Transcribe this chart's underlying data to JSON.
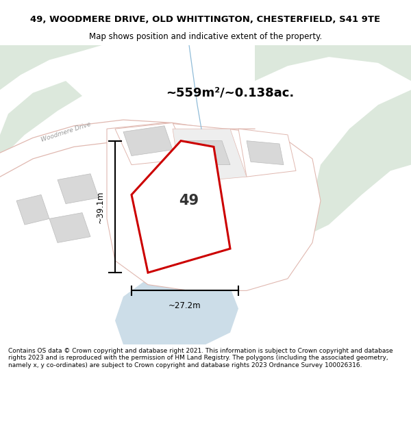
{
  "title": "49, WOODMERE DRIVE, OLD WHITTINGTON, CHESTERFIELD, S41 9TE",
  "subtitle": "Map shows position and indicative extent of the property.",
  "footer": "Contains OS data © Crown copyright and database right 2021. This information is subject to Crown copyright and database rights 2023 and is reproduced with the permission of HM Land Registry. The polygons (including the associated geometry, namely x, y co-ordinates) are subject to Crown copyright and database rights 2023 Ordnance Survey 100026316.",
  "area_text": "~559m²/~0.138ac.",
  "width_label": "~27.2m",
  "height_label": "~39.1m",
  "property_number": "49",
  "map_bg": "#f7f5f2",
  "road_fill": "#ffffff",
  "road_label": "Woodmere Drive",
  "building_fill": "#d8d8d8",
  "building_stroke": "#bbbbbb",
  "plot_stroke": "#e0b8b0",
  "red_color": "#cc0000",
  "green_color": "#dce8dc",
  "blue_color": "#ccdde8",
  "dim_color": "#000000",
  "text_dark": "#333333",
  "title_fontsize": 9.5,
  "subtitle_fontsize": 8.5,
  "footer_fontsize": 6.5
}
